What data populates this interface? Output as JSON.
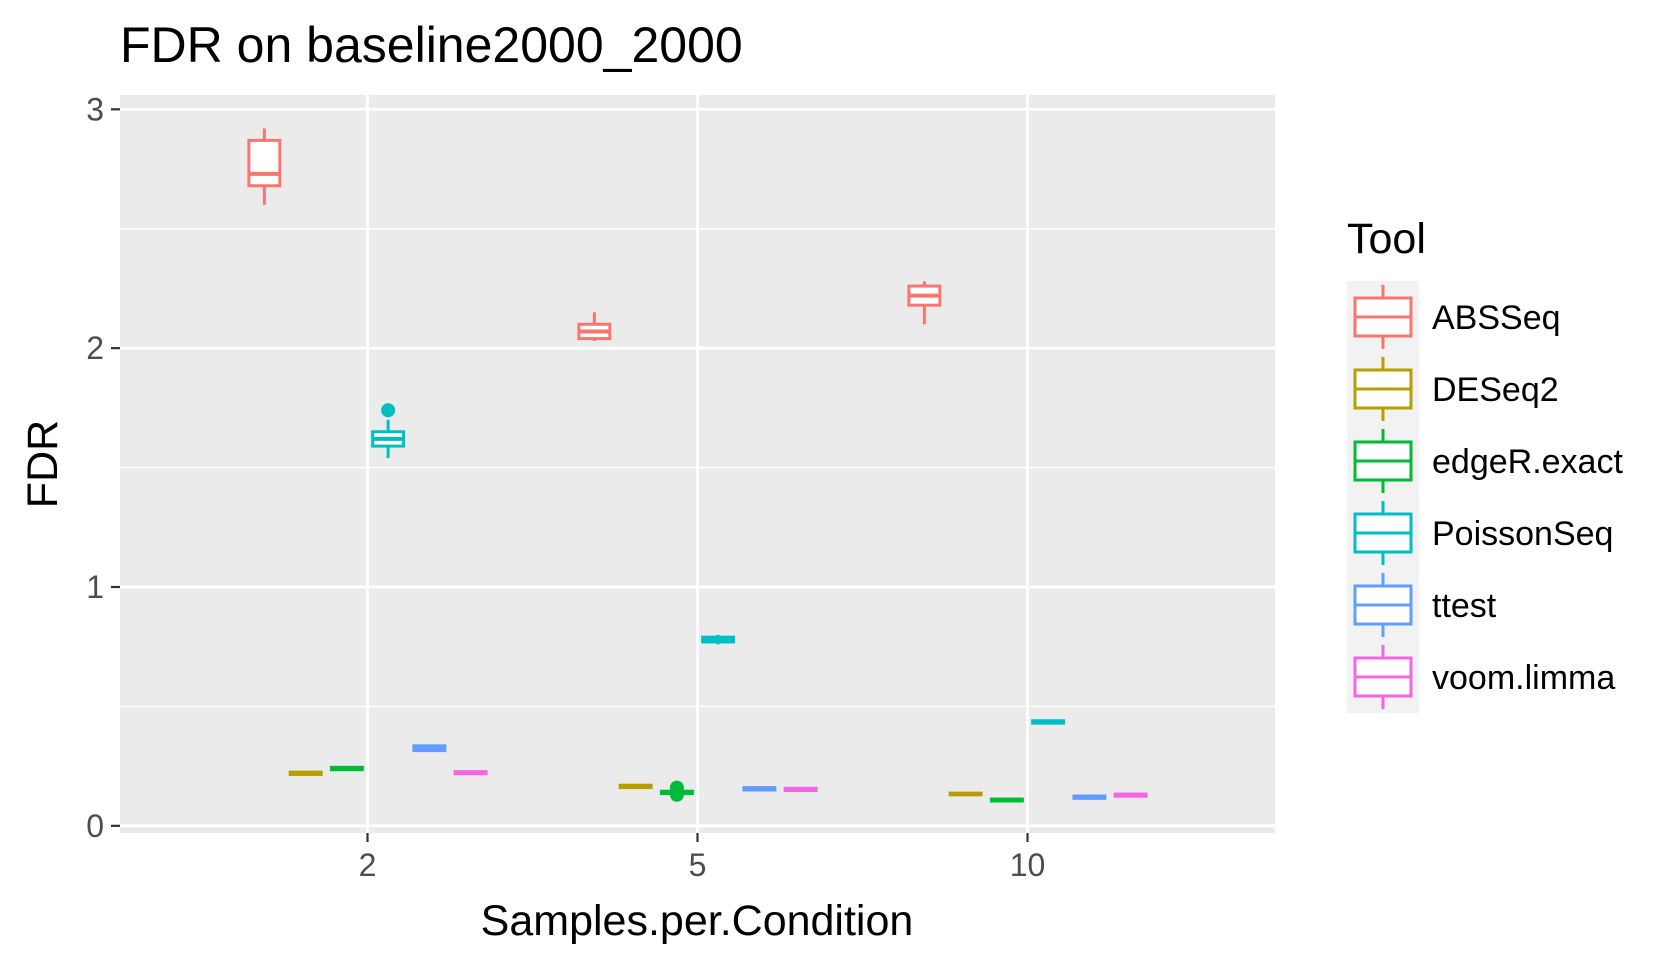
{
  "chart_data": {
    "type": "box",
    "title": "FDR on baseline2000_2000",
    "xlabel": "Samples.per.Condition",
    "ylabel": "FDR",
    "categories": [
      "2",
      "5",
      "10"
    ],
    "ylim": [
      -0.03,
      3.06
    ],
    "yticks": [
      0,
      1,
      2,
      3
    ],
    "grid": true,
    "legend": {
      "title": "Tool",
      "position": "right"
    },
    "series": [
      {
        "name": "ABSSeq",
        "color": "#F8766D",
        "boxes": [
          {
            "category": "2",
            "min": 2.6,
            "q1": 2.68,
            "median": 2.73,
            "q3": 2.87,
            "max": 2.92,
            "outliers": []
          },
          {
            "category": "5",
            "min": 2.03,
            "q1": 2.04,
            "median": 2.07,
            "q3": 2.1,
            "max": 2.15,
            "outliers": []
          },
          {
            "category": "10",
            "min": 2.1,
            "q1": 2.18,
            "median": 2.22,
            "q3": 2.26,
            "max": 2.28,
            "outliers": []
          }
        ]
      },
      {
        "name": "DESeq2",
        "color": "#B79F00",
        "boxes": [
          {
            "category": "2",
            "min": 0.21,
            "q1": 0.215,
            "median": 0.22,
            "q3": 0.225,
            "max": 0.23,
            "outliers": []
          },
          {
            "category": "5",
            "min": 0.155,
            "q1": 0.16,
            "median": 0.165,
            "q3": 0.17,
            "max": 0.175,
            "outliers": []
          },
          {
            "category": "10",
            "min": 0.125,
            "q1": 0.13,
            "median": 0.133,
            "q3": 0.137,
            "max": 0.14,
            "outliers": []
          }
        ]
      },
      {
        "name": "edgeR.exact",
        "color": "#00BA38",
        "boxes": [
          {
            "category": "2",
            "min": 0.23,
            "q1": 0.235,
            "median": 0.24,
            "q3": 0.245,
            "max": 0.25,
            "outliers": []
          },
          {
            "category": "5",
            "min": 0.13,
            "q1": 0.135,
            "median": 0.14,
            "q3": 0.145,
            "max": 0.15,
            "outliers": [
              0.16,
              0.13
            ]
          },
          {
            "category": "10",
            "min": 0.1,
            "q1": 0.104,
            "median": 0.108,
            "q3": 0.112,
            "max": 0.115,
            "outliers": []
          }
        ]
      },
      {
        "name": "PoissonSeq",
        "color": "#00BFC4",
        "boxes": [
          {
            "category": "2",
            "min": 1.54,
            "q1": 1.59,
            "median": 1.62,
            "q3": 1.65,
            "max": 1.7,
            "outliers": [
              1.74
            ]
          },
          {
            "category": "5",
            "min": 0.76,
            "q1": 0.77,
            "median": 0.78,
            "q3": 0.79,
            "max": 0.8,
            "outliers": []
          },
          {
            "category": "10",
            "min": 0.425,
            "q1": 0.43,
            "median": 0.435,
            "q3": 0.44,
            "max": 0.445,
            "outliers": []
          }
        ]
      },
      {
        "name": "ttest",
        "color": "#619CFF",
        "boxes": [
          {
            "category": "2",
            "min": 0.31,
            "q1": 0.315,
            "median": 0.325,
            "q3": 0.335,
            "max": 0.34,
            "outliers": []
          },
          {
            "category": "5",
            "min": 0.145,
            "q1": 0.15,
            "median": 0.155,
            "q3": 0.16,
            "max": 0.165,
            "outliers": []
          },
          {
            "category": "10",
            "min": 0.11,
            "q1": 0.115,
            "median": 0.12,
            "q3": 0.125,
            "max": 0.128,
            "outliers": []
          }
        ]
      },
      {
        "name": "voom.limma",
        "color": "#F564E3",
        "boxes": [
          {
            "category": "2",
            "min": 0.215,
            "q1": 0.218,
            "median": 0.222,
            "q3": 0.227,
            "max": 0.23,
            "outliers": []
          },
          {
            "category": "5",
            "min": 0.145,
            "q1": 0.148,
            "median": 0.152,
            "q3": 0.157,
            "max": 0.16,
            "outliers": []
          },
          {
            "category": "10",
            "min": 0.12,
            "q1": 0.124,
            "median": 0.128,
            "q3": 0.133,
            "max": 0.136,
            "outliers": []
          }
        ]
      }
    ]
  }
}
